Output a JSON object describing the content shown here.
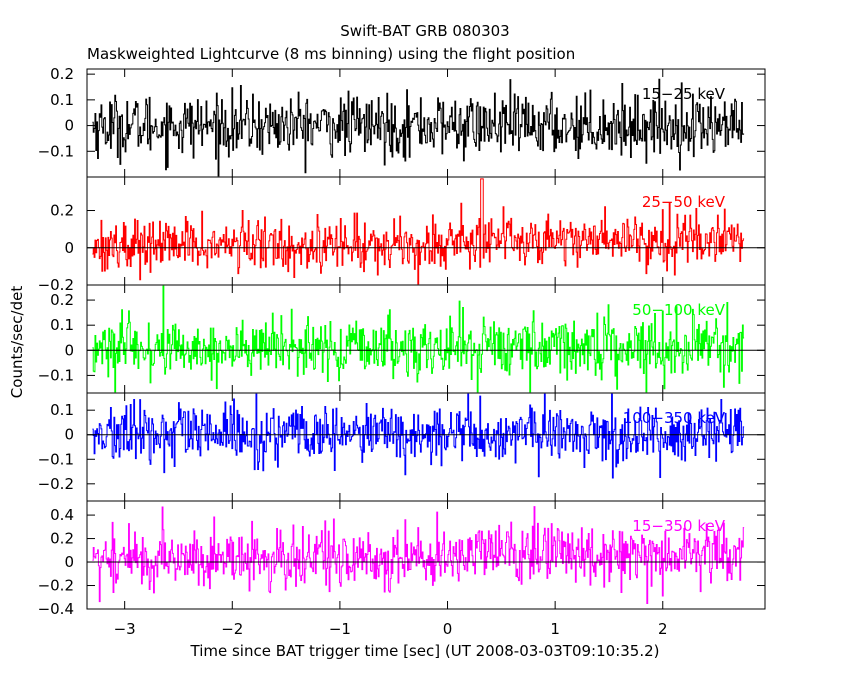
{
  "figure": {
    "title": "Swift-BAT GRB 080303",
    "subtitle": "Maskweighted Lightcurve (8 ms binning) using the flight position",
    "xlabel": "Time since BAT trigger time [sec] (UT 2008-03-03T09:10:35.2)",
    "ylabel": "Counts/sec/det"
  },
  "chart_data": {
    "type": "line",
    "style": "histogram-step",
    "xlim": [
      -3.35,
      2.95
    ],
    "x_ticks": [
      -3,
      -2,
      -1,
      0,
      1,
      2
    ],
    "x_tick_labels": [
      "−3",
      "−2",
      "−1",
      "0",
      "1",
      "2"
    ],
    "x_start": -3.3,
    "x_end": 2.75,
    "bin_width_s": 0.008,
    "series": [
      {
        "name": "15−25 keV",
        "color": "#000000",
        "ylim": [
          -0.2,
          0.22
        ],
        "y_ticks": [
          -0.1,
          0,
          0.1,
          0.2
        ],
        "y_tick_labels": [
          "−0.1",
          "0",
          "0.1",
          "0.2"
        ],
        "mean_rate": 0.0,
        "noise_sigma": 0.06,
        "zero_line": false
      },
      {
        "name": "25−50 keV",
        "color": "#ff0000",
        "ylim": [
          -0.2,
          0.38
        ],
        "y_ticks": [
          -0.2,
          0,
          0.2
        ],
        "y_tick_labels": [
          "−0.2",
          "0",
          "0.2"
        ],
        "mean_rate": 0.03,
        "noise_sigma": 0.07,
        "zero_line": true,
        "peak": {
          "x": 0.32,
          "y": 0.37
        }
      },
      {
        "name": "50−100 keV",
        "color": "#00ff00",
        "ylim": [
          -0.17,
          0.26
        ],
        "y_ticks": [
          -0.1,
          0,
          0.1,
          0.2
        ],
        "y_tick_labels": [
          "−0.1",
          "0",
          "0.1",
          "0.2"
        ],
        "mean_rate": 0.01,
        "noise_sigma": 0.06,
        "zero_line": true
      },
      {
        "name": "100−350 keV",
        "color": "#0000ff",
        "ylim": [
          -0.27,
          0.17
        ],
        "y_ticks": [
          -0.2,
          -0.1,
          0,
          0.1
        ],
        "y_tick_labels": [
          "−0.2",
          "−0.1",
          "0",
          "0.1"
        ],
        "mean_rate": 0.0,
        "noise_sigma": 0.06,
        "zero_line": true
      },
      {
        "name": "15−350 keV",
        "color": "#ff00ff",
        "ylim": [
          -0.4,
          0.52
        ],
        "y_ticks": [
          -0.4,
          -0.2,
          0,
          0.2,
          0.4
        ],
        "y_tick_labels": [
          "−0.4",
          "−0.2",
          "0",
          "0.2",
          "0.4"
        ],
        "mean_rate": 0.05,
        "noise_sigma": 0.13,
        "zero_line": true
      }
    ]
  }
}
